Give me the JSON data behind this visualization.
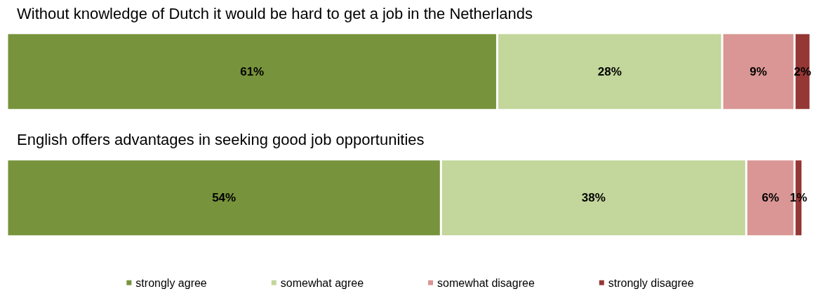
{
  "chart_data": {
    "type": "bar",
    "orientation": "horizontal",
    "stacked": true,
    "legend": "bottom",
    "categories": [
      "Without knowledge of Dutch it would be hard to get a job in the Netherlands",
      "English offers advantages in seeking good job opportunities"
    ],
    "series": [
      {
        "name": "strongly agree",
        "color": "#77933c",
        "values": [
          61,
          54
        ],
        "value_labels": [
          "61%",
          "54%"
        ]
      },
      {
        "name": "somewhat agree",
        "color": "#c3d69b",
        "values": [
          28,
          38
        ],
        "value_labels": [
          "28%",
          "38%"
        ]
      },
      {
        "name": "somewhat disagree",
        "color": "#d99694",
        "values": [
          9,
          6
        ],
        "value_labels": [
          "9%",
          "6%"
        ]
      },
      {
        "name": "strongly disagree",
        "color": "#953735",
        "values": [
          2,
          1
        ],
        "value_labels": [
          "2%",
          "1%"
        ]
      }
    ]
  }
}
